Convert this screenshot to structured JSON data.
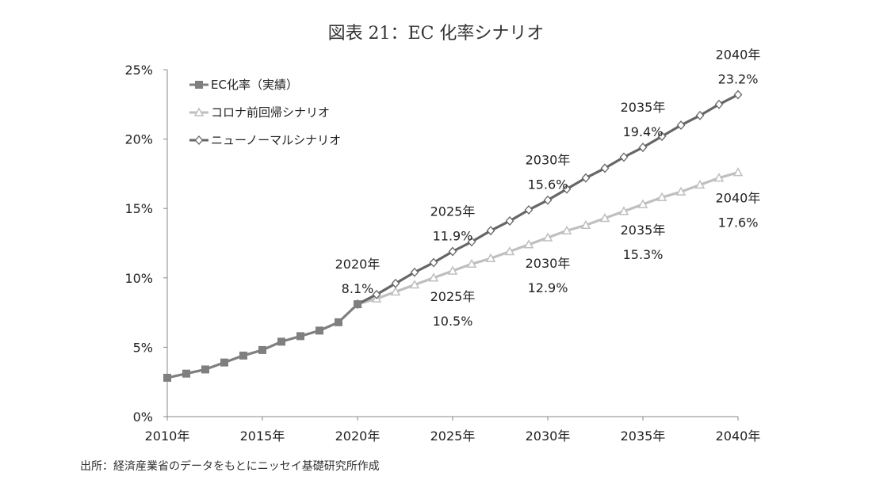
{
  "chart_data": {
    "type": "line",
    "title": "図表 21：EC 化率シナリオ",
    "source": "出所：経済産業省のデータをもとにニッセイ基礎研究所作成",
    "y_ticks": [
      "0%",
      "5%",
      "10%",
      "15%",
      "20%",
      "25%"
    ],
    "x_ticks": [
      "2010年",
      "2015年",
      "2020年",
      "2025年",
      "2030年",
      "2035年",
      "2040年"
    ],
    "xlim": [
      2010,
      2040
    ],
    "ylim": [
      0,
      25
    ],
    "grid": false,
    "legend_position": "top-left",
    "series": [
      {
        "name": "EC化率（実績）",
        "color": "#7f7f7f",
        "marker": "square",
        "x": [
          2010,
          2011,
          2012,
          2013,
          2014,
          2015,
          2016,
          2017,
          2018,
          2019,
          2020
        ],
        "values": [
          2.8,
          3.1,
          3.4,
          3.9,
          4.4,
          4.8,
          5.4,
          5.8,
          6.2,
          6.8,
          8.1
        ]
      },
      {
        "name": "コロナ前回帰シナリオ",
        "color": "#bfbfbf",
        "marker": "triangle",
        "x": [
          2020,
          2021,
          2022,
          2023,
          2024,
          2025,
          2026,
          2027,
          2028,
          2029,
          2030,
          2031,
          2032,
          2033,
          2034,
          2035,
          2036,
          2037,
          2038,
          2039,
          2040
        ],
        "values": [
          8.1,
          8.5,
          9.0,
          9.5,
          10.0,
          10.5,
          11.0,
          11.4,
          11.9,
          12.4,
          12.9,
          13.4,
          13.8,
          14.3,
          14.8,
          15.3,
          15.8,
          16.2,
          16.7,
          17.2,
          17.6
        ]
      },
      {
        "name": "ニューノーマルシナリオ",
        "color": "#666666",
        "marker": "diamond",
        "x": [
          2020,
          2021,
          2022,
          2023,
          2024,
          2025,
          2026,
          2027,
          2028,
          2029,
          2030,
          2031,
          2032,
          2033,
          2034,
          2035,
          2036,
          2037,
          2038,
          2039,
          2040
        ],
        "values": [
          8.1,
          8.8,
          9.6,
          10.4,
          11.1,
          11.9,
          12.6,
          13.4,
          14.1,
          14.9,
          15.6,
          16.4,
          17.2,
          17.9,
          18.7,
          19.4,
          20.2,
          21.0,
          21.7,
          22.5,
          23.2
        ]
      }
    ],
    "annotations": [
      {
        "year_label": "2020年",
        "value_label": "8.1%",
        "x": 2020,
        "y": 8.1,
        "pos": "above"
      },
      {
        "year_label": "2025年",
        "value_label": "11.9%",
        "x": 2025,
        "y": 11.9,
        "pos": "above"
      },
      {
        "year_label": "2030年",
        "value_label": "15.6%",
        "x": 2030,
        "y": 15.6,
        "pos": "above"
      },
      {
        "year_label": "2035年",
        "value_label": "19.4%",
        "x": 2035,
        "y": 19.4,
        "pos": "above"
      },
      {
        "year_label": "2040年",
        "value_label": "23.2%",
        "x": 2040,
        "y": 23.2,
        "pos": "above"
      },
      {
        "year_label": "2025年",
        "value_label": "10.5%",
        "x": 2025,
        "y": 10.5,
        "pos": "below"
      },
      {
        "year_label": "2030年",
        "value_label": "12.9%",
        "x": 2030,
        "y": 12.9,
        "pos": "below"
      },
      {
        "year_label": "2035年",
        "value_label": "15.3%",
        "x": 2035,
        "y": 15.3,
        "pos": "below"
      },
      {
        "year_label": "2040年",
        "value_label": "17.6%",
        "x": 2040,
        "y": 17.6,
        "pos": "below"
      }
    ]
  }
}
